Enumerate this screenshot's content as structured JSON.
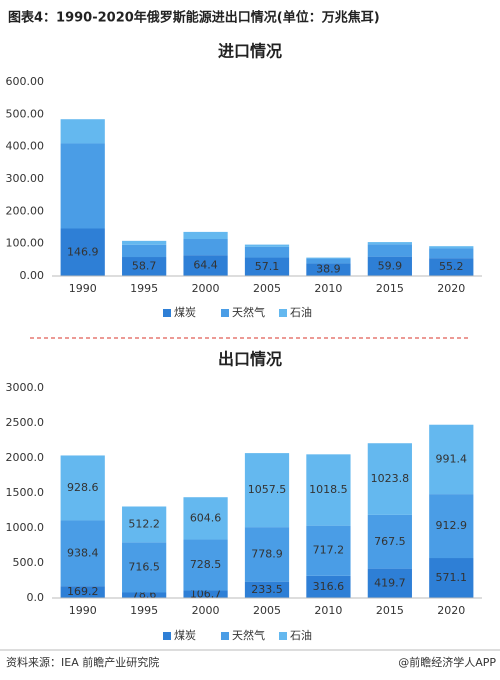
{
  "header": {
    "title": "图表4：1990-2020年俄罗斯能源进出口情况(单位：万兆焦耳)"
  },
  "chart_data": [
    {
      "type": "bar",
      "stacked": true,
      "title": "进口情况",
      "categories": [
        "1990",
        "1995",
        "2000",
        "2005",
        "2010",
        "2015",
        "2020"
      ],
      "series": [
        {
          "name": "煤炭",
          "color": "#2e7fd6",
          "labels": true,
          "values": [
            146.9,
            58.7,
            64.4,
            57.1,
            38.9,
            59.9,
            55.2
          ]
        },
        {
          "name": "天然气",
          "color": "#4a9de6",
          "labels": false,
          "values": [
            263,
            38,
            50,
            33,
            15,
            38,
            30
          ]
        },
        {
          "name": "石油",
          "color": "#64b8ef",
          "labels": false,
          "values": [
            75,
            12,
            22,
            7,
            3,
            7,
            7
          ]
        }
      ],
      "ylim": [
        0,
        600
      ],
      "yticks": [
        {
          "value": 0,
          "label": "0.00"
        },
        {
          "value": 100,
          "label": "100.00"
        },
        {
          "value": 200,
          "label": "200.00"
        },
        {
          "value": 300,
          "label": "300.00"
        },
        {
          "value": 400,
          "label": "400.00"
        },
        {
          "value": 500,
          "label": "500.00"
        },
        {
          "value": 600,
          "label": "600.00"
        }
      ],
      "legend": "bottom"
    },
    {
      "type": "bar",
      "stacked": true,
      "title": "出口情况",
      "categories": [
        "1990",
        "1995",
        "2000",
        "2005",
        "2010",
        "2015",
        "2020"
      ],
      "series": [
        {
          "name": "煤炭",
          "color": "#2e7fd6",
          "labels": true,
          "values": [
            169.2,
            78.6,
            106.7,
            233.5,
            316.6,
            419.7,
            571.1
          ]
        },
        {
          "name": "天然气",
          "color": "#4a9de6",
          "labels": true,
          "values": [
            938.4,
            716.5,
            728.5,
            778.9,
            717.2,
            767.5,
            912.9
          ]
        },
        {
          "name": "石油",
          "color": "#64b8ef",
          "labels": true,
          "values": [
            928.6,
            512.2,
            604.6,
            1057.5,
            1018.5,
            1023.8,
            991.4
          ]
        }
      ],
      "ylim": [
        0,
        3000
      ],
      "yticks": [
        {
          "value": 0,
          "label": "0.0"
        },
        {
          "value": 500,
          "label": "500.0"
        },
        {
          "value": 1000,
          "label": "1000.0"
        },
        {
          "value": 1500,
          "label": "1500.0"
        },
        {
          "value": 2000,
          "label": "2000.0"
        },
        {
          "value": 2500,
          "label": "2500.0"
        },
        {
          "value": 3000,
          "label": "3000.0"
        }
      ],
      "legend": "bottom"
    }
  ],
  "footer": {
    "source": "资料来源：IEA 前瞻产业研究院",
    "brand": "@前瞻经济学人APP"
  }
}
